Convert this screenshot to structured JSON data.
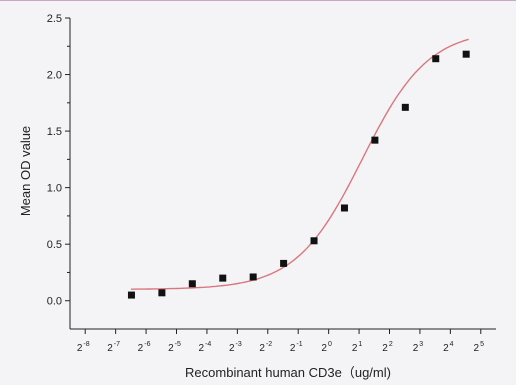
{
  "chart_data": {
    "type": "scatter",
    "title": "",
    "xlabel": "Recombinant human  CD3e（ug/ml)",
    "ylabel": "Mean OD value",
    "x_scale": "log2",
    "xlim": [
      -8.5,
      5.5
    ],
    "ylim": [
      -0.25,
      2.5
    ],
    "x_ticks": [
      {
        "base": "2",
        "exp": "-8",
        "value": -8
      },
      {
        "base": "2",
        "exp": "-7",
        "value": -7
      },
      {
        "base": "2",
        "exp": "-6",
        "value": -6
      },
      {
        "base": "2",
        "exp": "-5",
        "value": -5
      },
      {
        "base": "2",
        "exp": "-4",
        "value": -4
      },
      {
        "base": "2",
        "exp": "-3",
        "value": -3
      },
      {
        "base": "2",
        "exp": "-2",
        "value": -2
      },
      {
        "base": "2",
        "exp": "-1",
        "value": -1
      },
      {
        "base": "2",
        "exp": "0",
        "value": 0
      },
      {
        "base": "2",
        "exp": "1",
        "value": 1
      },
      {
        "base": "2",
        "exp": "2",
        "value": 2
      },
      {
        "base": "2",
        "exp": "3",
        "value": 3
      },
      {
        "base": "2",
        "exp": "4",
        "value": 4
      },
      {
        "base": "2",
        "exp": "5",
        "value": 5
      }
    ],
    "y_ticks": [
      "0.0",
      "0.5",
      "1.0",
      "1.5",
      "2.0",
      "2.5"
    ],
    "y_tick_values": [
      0.0,
      0.5,
      1.0,
      1.5,
      2.0,
      2.5
    ],
    "points": {
      "x": [
        -6.48,
        -5.48,
        -4.48,
        -3.48,
        -2.48,
        -1.48,
        -0.48,
        0.52,
        1.52,
        2.52,
        3.52,
        4.52
      ],
      "y": [
        0.05,
        0.07,
        0.15,
        0.2,
        0.21,
        0.33,
        0.53,
        0.82,
        1.42,
        1.71,
        2.14,
        2.18
      ]
    },
    "fit_curve": {
      "type": "four-parameter-logistic",
      "bottom": 0.1,
      "top": 2.4,
      "midpoint": 1.1,
      "slope": 0.92,
      "x_range": [
        -6.5,
        4.6
      ]
    },
    "colors": {
      "points": "#111111",
      "curve": "#d9777f",
      "axis": "#222222"
    },
    "grid": false,
    "legend": "none"
  }
}
